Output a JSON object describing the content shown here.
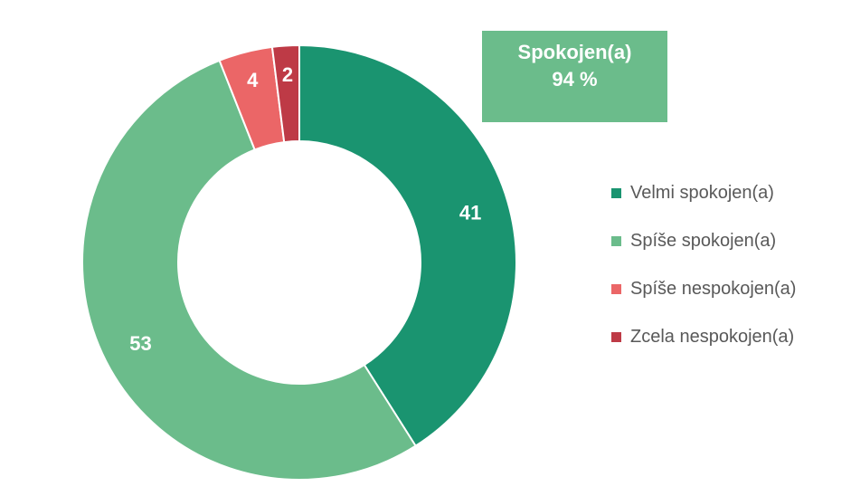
{
  "chart_data": {
    "type": "pie",
    "style": "doughnut",
    "categories": [
      "Velmi spokojen(a)",
      "Spíše spokojen(a)",
      "Spíše nespokojen(a)",
      "Zcela nespokojen(a)"
    ],
    "values": [
      41,
      53,
      4,
      2
    ],
    "colors": [
      "#1A9470",
      "#6BBC8B",
      "#EB6667",
      "#BE3A46"
    ],
    "data_labels": [
      "41",
      "53",
      "4",
      "2"
    ],
    "legend_position": "right"
  },
  "callout": {
    "label": "Spokojen(a)",
    "value": "94 %",
    "color": "#6BBC8B"
  },
  "legend": {
    "items": [
      {
        "label": "Velmi spokojen(a)",
        "color": "#1A9470"
      },
      {
        "label": "Spíše spokojen(a)",
        "color": "#6BBC8B"
      },
      {
        "label": "Spíše nespokojen(a)",
        "color": "#EB6667"
      },
      {
        "label": "Zcela nespokojen(a)",
        "color": "#BE3A46"
      }
    ]
  }
}
